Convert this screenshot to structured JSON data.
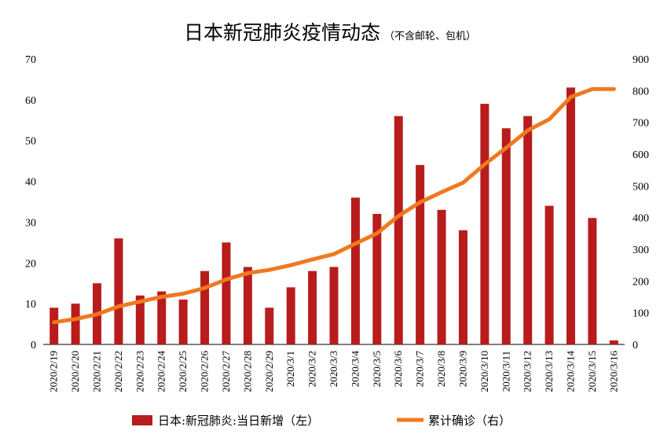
{
  "chart_data": {
    "type": "bar",
    "title": "日本新冠肺炎疫情动态",
    "subtitle": "（不含邮轮、包机）",
    "categories": [
      "2020/2/19",
      "2020/2/20",
      "2020/2/21",
      "2020/2/22",
      "2020/2/23",
      "2020/2/24",
      "2020/2/25",
      "2020/2/26",
      "2020/2/27",
      "2020/2/28",
      "2020/2/29",
      "2020/3/1",
      "2020/3/2",
      "2020/3/3",
      "2020/3/4",
      "2020/3/5",
      "2020/3/6",
      "2020/3/7",
      "2020/3/8",
      "2020/3/9",
      "2020/3/10",
      "2020/3/11",
      "2020/3/12",
      "2020/3/13",
      "2020/3/14",
      "2020/3/15",
      "2020/3/16"
    ],
    "series": [
      {
        "name": "日本:新冠肺炎:当日新增（左）",
        "type": "bar",
        "axis": "left",
        "color": "#b81c1c",
        "values": [
          9,
          10,
          15,
          26,
          12,
          13,
          11,
          18,
          25,
          19,
          9,
          14,
          18,
          19,
          36,
          32,
          56,
          44,
          33,
          28,
          59,
          53,
          56,
          34,
          63,
          31,
          1
        ]
      },
      {
        "name": "累计确诊（右）",
        "type": "line",
        "axis": "right",
        "color": "#f07820",
        "values": [
          70,
          80,
          95,
          120,
          135,
          150,
          160,
          178,
          205,
          225,
          235,
          250,
          268,
          285,
          318,
          350,
          405,
          448,
          480,
          510,
          568,
          620,
          675,
          710,
          780,
          805,
          805
        ]
      }
    ],
    "y_left": {
      "min": 0,
      "max": 70,
      "ticks": [
        0,
        10,
        20,
        30,
        40,
        50,
        60,
        70
      ]
    },
    "y_right": {
      "min": 0,
      "max": 900,
      "ticks": [
        0,
        100,
        200,
        300,
        400,
        500,
        600,
        700,
        800,
        900
      ]
    },
    "grid": false,
    "legend": "bottom"
  }
}
